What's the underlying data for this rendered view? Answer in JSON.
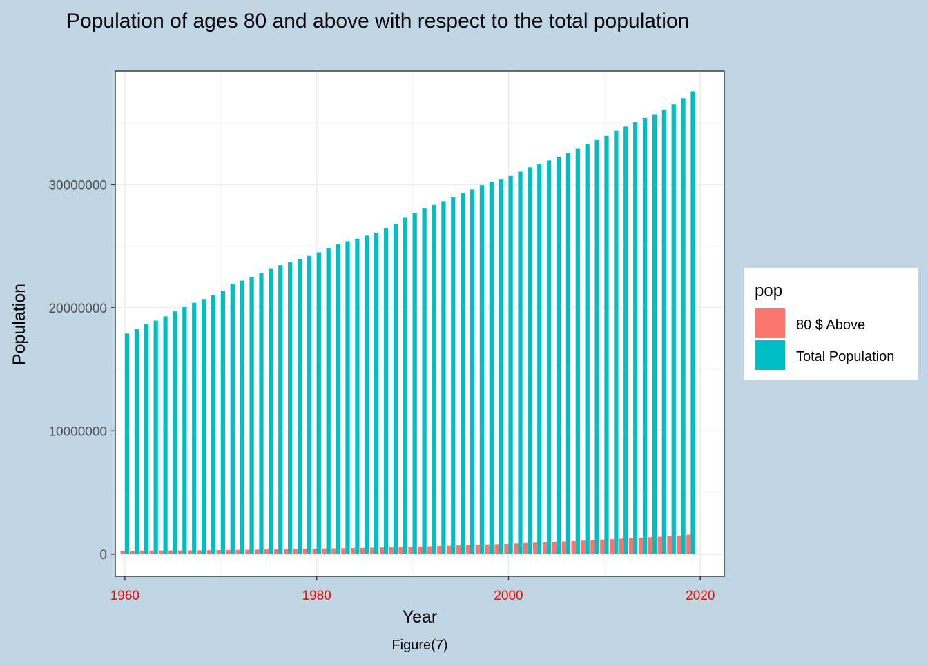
{
  "chart_data": {
    "type": "bar",
    "title": "Population of ages 80 and above with respect to the total population",
    "xlabel": "Year",
    "ylabel": "Population",
    "caption": "Figure(7)",
    "xlim": [
      1959,
      2022.5
    ],
    "ylim": [
      -1800000,
      39200000
    ],
    "x_ticks": [
      1960,
      1980,
      2000,
      2020
    ],
    "y_ticks": [
      0,
      10000000,
      20000000,
      30000000
    ],
    "y_tick_labels": [
      "0",
      "10000000",
      "20000000",
      "30000000"
    ],
    "x_tick_color": "#ff0000",
    "grid": true,
    "legend": {
      "title": "pop",
      "position": "right"
    },
    "x": [
      1960,
      1961,
      1962,
      1963,
      1964,
      1965,
      1966,
      1967,
      1968,
      1969,
      1970,
      1971,
      1972,
      1973,
      1974,
      1975,
      1976,
      1977,
      1978,
      1979,
      1980,
      1981,
      1982,
      1983,
      1984,
      1985,
      1986,
      1987,
      1988,
      1989,
      1990,
      1991,
      1992,
      1993,
      1994,
      1995,
      1996,
      1997,
      1998,
      1999,
      2000,
      2001,
      2002,
      2003,
      2004,
      2005,
      2006,
      2007,
      2008,
      2009,
      2010,
      2011,
      2012,
      2013,
      2014,
      2015,
      2016,
      2017,
      2018,
      2019
    ],
    "series": [
      {
        "name": "80 $ Above",
        "color": "#f8766d",
        "values": [
          270000,
          275000,
          280000,
          285000,
          290000,
          295000,
          300000,
          305000,
          310000,
          318000,
          326000,
          335000,
          345000,
          355000,
          365000,
          378000,
          390000,
          402000,
          415000,
          428000,
          440000,
          455000,
          470000,
          485000,
          500000,
          515000,
          530000,
          545000,
          560000,
          575000,
          590000,
          615000,
          640000,
          665000,
          690000,
          715000,
          740000,
          765000,
          790000,
          815000,
          840000,
          870000,
          900000,
          930000,
          960000,
          990000,
          1020000,
          1060000,
          1100000,
          1140000,
          1180000,
          1220000,
          1260000,
          1300000,
          1340000,
          1380000,
          1420000,
          1470000,
          1520000,
          1580000
        ]
      },
      {
        "name": "Total Population",
        "color": "#00bfc4",
        "values": [
          17900000,
          18250000,
          18650000,
          18950000,
          19300000,
          19700000,
          20050000,
          20400000,
          20700000,
          21000000,
          21350000,
          21950000,
          22200000,
          22500000,
          22800000,
          23150000,
          23450000,
          23700000,
          23950000,
          24200000,
          24500000,
          24800000,
          25150000,
          25400000,
          25600000,
          25850000,
          26100000,
          26450000,
          26800000,
          27300000,
          27700000,
          28050000,
          28350000,
          28650000,
          28950000,
          29300000,
          29600000,
          29950000,
          30200000,
          30400000,
          30700000,
          31050000,
          31400000,
          31650000,
          31950000,
          32250000,
          32550000,
          32900000,
          33300000,
          33600000,
          33950000,
          34350000,
          34700000,
          35050000,
          35400000,
          35700000,
          36050000,
          36500000,
          37000000,
          37550000
        ]
      }
    ]
  }
}
